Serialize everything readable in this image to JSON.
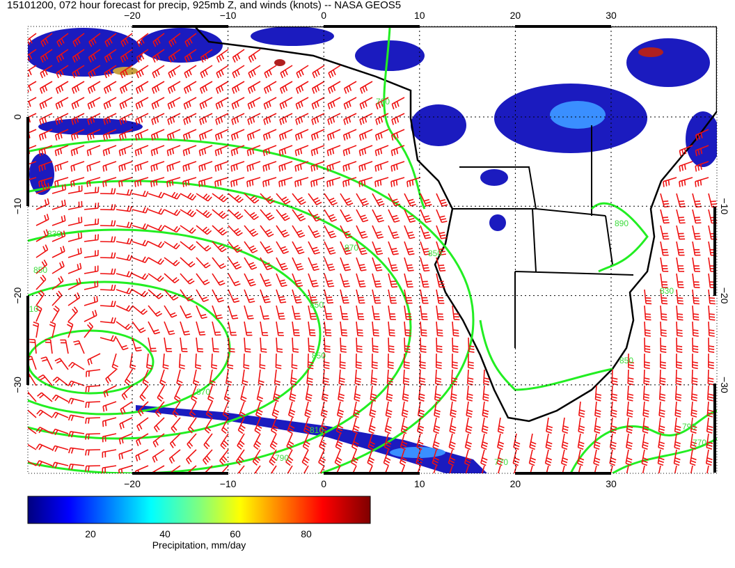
{
  "title": "15101200, 072 hour forecast for precip, 925mb Z, and winds (knots) -- NASA GEOS5",
  "map": {
    "lon_labels_top": [
      "−20",
      "−10",
      "0",
      "10",
      "20",
      "30"
    ],
    "lon_labels_bottom": [
      "−20",
      "−10",
      "0",
      "10",
      "20",
      "30"
    ],
    "lat_labels_left": [
      "0",
      "−10",
      "−20",
      "−30"
    ],
    "lat_labels_right": [
      "−10",
      "−20",
      "−30"
    ],
    "contour_labels": [
      "790",
      "830",
      "850",
      "810",
      "870",
      "850",
      "850",
      "850",
      "870",
      "810",
      "790",
      "770",
      "790",
      "770",
      "850",
      "890",
      "830"
    ]
  },
  "colorbar": {
    "tick_labels": [
      "20",
      "40",
      "60",
      "80"
    ],
    "label": "Precipitation, mm/day"
  }
}
